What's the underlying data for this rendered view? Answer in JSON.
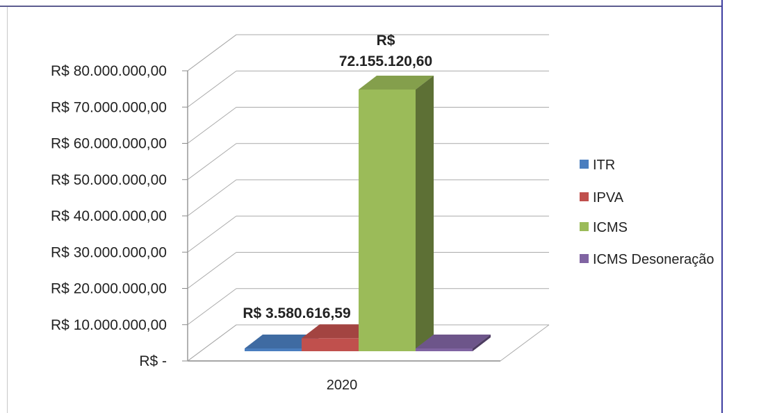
{
  "chart_data": {
    "type": "bar",
    "categories": [
      "2020"
    ],
    "series": [
      {
        "name": "ITR",
        "values": [
          0
        ],
        "color": "#4a7ebf"
      },
      {
        "name": "IPVA",
        "values": [
          3580616.59
        ],
        "color": "#c0504d"
      },
      {
        "name": "ICMS",
        "values": [
          72155120.6
        ],
        "color": "#9bbb59"
      },
      {
        "name": "ICMS Desoneração",
        "values": [
          0
        ],
        "color": "#8064a2"
      }
    ],
    "ylim": [
      0,
      80000000
    ],
    "yticks": [
      {
        "value": 0,
        "label": "R$ -"
      },
      {
        "value": 10000000,
        "label": "R$ 10.000.000,00"
      },
      {
        "value": 20000000,
        "label": "R$ 20.000.000,00"
      },
      {
        "value": 30000000,
        "label": "R$ 30.000.000,00"
      },
      {
        "value": 40000000,
        "label": "R$ 40.000.000,00"
      },
      {
        "value": 50000000,
        "label": "R$ 50.000.000,00"
      },
      {
        "value": 60000000,
        "label": "R$ 60.000.000,00"
      },
      {
        "value": 70000000,
        "label": "R$ 70.000.000,00"
      },
      {
        "value": 80000000,
        "label": "R$ 80.000.000,00"
      }
    ],
    "data_labels": {
      "ipva": "R$ 3.580.616,59",
      "icms_line1": "R$",
      "icms_line2": "72.155.120,60"
    },
    "legend": {
      "position": "right",
      "items": [
        "ITR",
        "IPVA",
        "ICMS",
        "ICMS Desoneração"
      ]
    },
    "grid": true,
    "style": "3d-column",
    "title": "",
    "xlabel": "",
    "ylabel": ""
  }
}
